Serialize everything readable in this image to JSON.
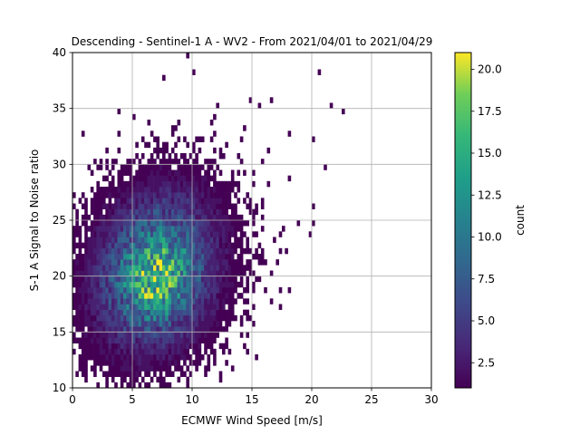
{
  "chart_data": {
    "type": "heatmap",
    "title": "Descending - Sentinel-1 A - WV2 - From 2021/04/01 to 2021/04/29",
    "xlabel": "ECMWF Wind Speed [m/s]",
    "ylabel": "S-1 A Signal to Noise ratio",
    "xlim": [
      0,
      30
    ],
    "ylim": [
      10,
      40
    ],
    "xticks": [
      "0",
      "5",
      "10",
      "15",
      "20",
      "25",
      "30"
    ],
    "yticks": [
      "10",
      "15",
      "20",
      "25",
      "30",
      "35",
      "40"
    ],
    "grid": true,
    "colormap": "viridis",
    "colorbar": {
      "label": "count",
      "range": [
        1,
        21
      ],
      "ticks": [
        "2.5",
        "5.0",
        "7.5",
        "10.0",
        "12.5",
        "15.0",
        "17.5",
        "20.0"
      ]
    },
    "bin_size": {
      "x": 0.25,
      "y": 0.5
    },
    "density_model": {
      "peak_count": 21,
      "peak_at": {
        "x": 7,
        "y": 19
      },
      "core": {
        "x_mean": 7,
        "x_sd": 3.1,
        "y_mean": 20.5,
        "y_sd": 4.2
      },
      "tilt": 0.22,
      "bulk_extent": {
        "x": [
          0.25,
          17.5
        ],
        "y": [
          11,
          31
        ]
      }
    },
    "outliers": [
      {
        "x": 9.5,
        "y": 39.7
      },
      {
        "x": 22.7,
        "y": 34.9
      },
      {
        "x": 20.5,
        "y": 38.2
      },
      {
        "x": 21.5,
        "y": 35.2
      },
      {
        "x": 10.2,
        "y": 38.2
      },
      {
        "x": 7.6,
        "y": 37.5
      },
      {
        "x": 18.0,
        "y": 32.5
      },
      {
        "x": 20.0,
        "y": 32.0
      },
      {
        "x": 20.0,
        "y": 26.2
      },
      {
        "x": 20.2,
        "y": 24.8
      },
      {
        "x": 19.8,
        "y": 23.5
      },
      {
        "x": 18.8,
        "y": 24.5
      },
      {
        "x": 21.2,
        "y": 29.8
      },
      {
        "x": 3.8,
        "y": 34.5
      },
      {
        "x": 5.0,
        "y": 34.0
      },
      {
        "x": 16.5,
        "y": 35.5
      },
      {
        "x": 14.8,
        "y": 35.8
      },
      {
        "x": 12.0,
        "y": 35.2
      },
      {
        "x": 6.2,
        "y": 31.8
      },
      {
        "x": 18.2,
        "y": 28.8
      }
    ]
  }
}
